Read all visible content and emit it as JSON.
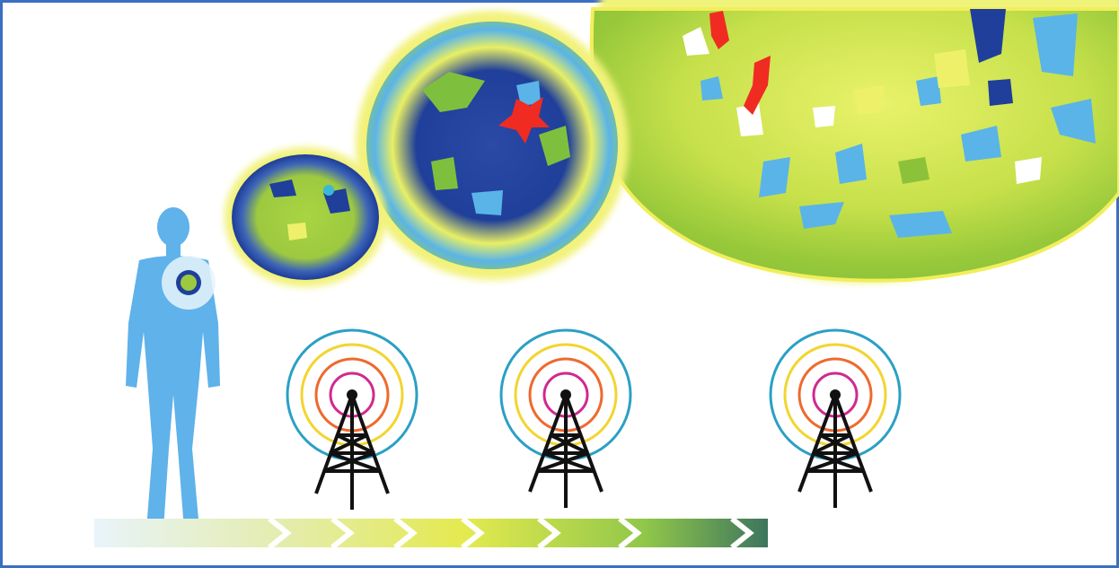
{
  "illustration": {
    "subject": "human-figure",
    "magnified_cells": [
      "cell-small",
      "cell-medium",
      "cell-large"
    ],
    "towers": [
      "tower-1",
      "tower-2",
      "tower-3"
    ],
    "progress_arrow_segments": 9
  },
  "colors": {
    "frame": "#3b6fc0",
    "human": "#5fb2ea",
    "cell_green": "#9fcd32",
    "cell_yellow": "#eef06a",
    "cell_navy": "#1f3f9a",
    "cell_light_blue": "#5ab4e8",
    "cell_red": "#ef2b22",
    "ring_blue": "#2aa0c4",
    "ring_yellow": "#f2d531",
    "ring_orange": "#ee6a2e",
    "ring_magenta": "#d02a8e",
    "tower": "#111111",
    "arrow_start": "#eaf5fa",
    "arrow_mid": "#e6ec5e",
    "arrow_end": "#3e7a5f"
  }
}
